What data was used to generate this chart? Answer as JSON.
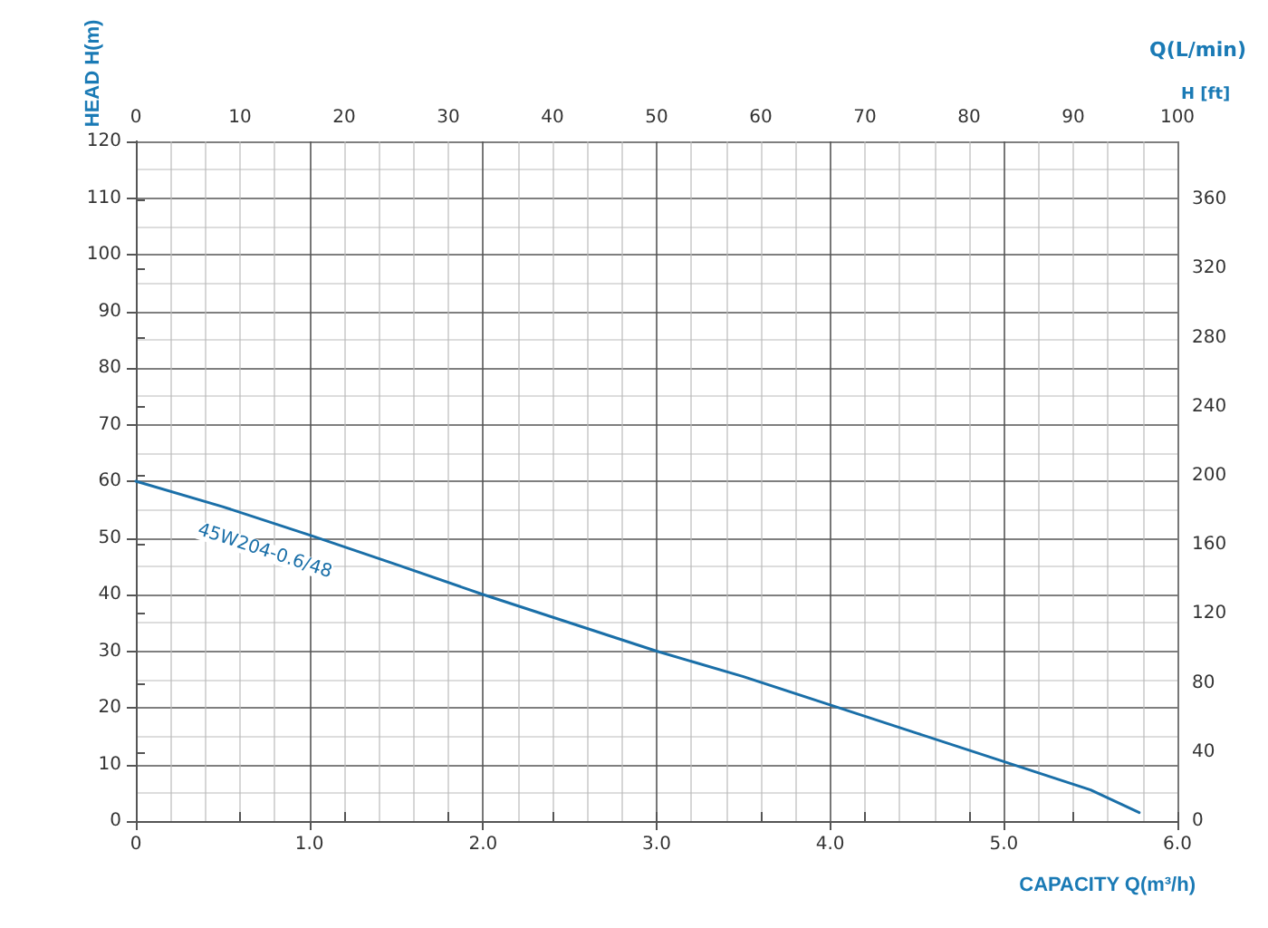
{
  "chart_data": {
    "type": "line",
    "xlabel": "CAPACITY Q(m³/h)",
    "ylabel": "HEAD H(m)",
    "x2label": "Q(L/min)",
    "y2label": "H [ft]",
    "xlim": [
      0,
      6
    ],
    "xticks": [
      0,
      {
        "value": 1,
        "label": "1.0"
      },
      {
        "value": 2,
        "label": "2.0"
      },
      {
        "value": 3,
        "label": "3.0"
      },
      {
        "value": 4,
        "label": "4.0"
      },
      {
        "value": 5,
        "label": "5.0"
      },
      {
        "value": 6,
        "label": "6.0"
      }
    ],
    "ylim": [
      0,
      120
    ],
    "yticks": [
      0,
      10,
      20,
      30,
      40,
      50,
      60,
      70,
      80,
      90,
      100,
      110,
      120
    ],
    "x2lim": [
      0,
      100
    ],
    "x2ticks": [
      0,
      10,
      20,
      30,
      40,
      50,
      60,
      70,
      80,
      90,
      100
    ],
    "y2lim": [
      0,
      393.7
    ],
    "y2ticks": [
      0,
      40,
      80,
      120,
      160,
      200,
      240,
      280,
      320,
      360
    ],
    "grid": true,
    "legend": false,
    "marker": "none",
    "line_style": "solid",
    "series": [
      {
        "name": "45W204-0.6/48",
        "color": "#1a6fa8",
        "x": [
          0,
          0.5,
          1,
          1.5,
          2,
          2.5,
          3,
          3.5,
          4,
          4.5,
          5,
          5.5,
          5.78
        ],
        "values": [
          60,
          55.5,
          50.5,
          45.3,
          40,
          35,
          30,
          25.5,
          20.5,
          15.5,
          10.5,
          5.5,
          1.5
        ]
      }
    ]
  }
}
